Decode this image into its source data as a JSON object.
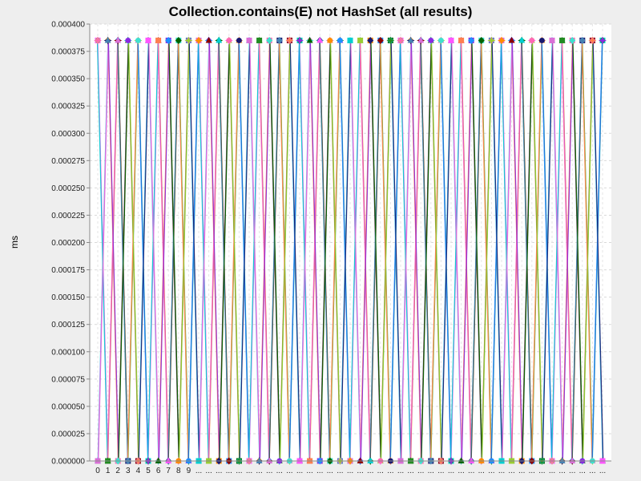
{
  "chart_data": {
    "type": "line",
    "title": "Collection.contains(E) not HashSet (all results)",
    "xlabel": "",
    "ylabel": "ms",
    "ylim": [
      0,
      0.0004
    ],
    "ytick_labels": [
      "0.000000",
      "0.000025",
      "0.000050",
      "0.000075",
      "0.000100",
      "0.000125",
      "0.000150",
      "0.000175",
      "0.000200",
      "0.000225",
      "0.000250",
      "0.000275",
      "0.000300",
      "0.000325",
      "0.000350",
      "0.000375",
      "0.000400"
    ],
    "categories": [
      "0",
      "1",
      "2",
      "3",
      "4",
      "5",
      "6",
      "7",
      "8",
      "9",
      "...",
      "...",
      "...",
      "...",
      "...",
      "...",
      "...",
      "...",
      "...",
      "...",
      "...",
      "...",
      "...",
      "...",
      "...",
      "...",
      "...",
      "...",
      "...",
      "...",
      "...",
      "...",
      "...",
      "...",
      "...",
      "...",
      "...",
      "...",
      "...",
      "...",
      "...",
      "...",
      "...",
      "...",
      "...",
      "...",
      "...",
      "...",
      "...",
      "...",
      "..."
    ],
    "series_colors": [
      "#ff55ff",
      "#006400",
      "#1e90ff",
      "#ff8c00",
      "#9acd32",
      "#00ced1",
      "#8b0000",
      "#191970",
      "#ff69b4",
      "#228b22",
      "#da70d6",
      "#4682b4",
      "#40e0d0",
      "#8a2be2",
      "#ff7f50"
    ],
    "grid": true,
    "legend": "none",
    "series": [
      {
        "values": [
          0.000385,
          0.0,
          0.000385,
          0.0,
          0.000385,
          0.0,
          0.000385,
          0.0,
          0.000385,
          0.0,
          0.000385,
          0.0,
          0.000385,
          0.0,
          0.000385,
          0.0,
          0.000385,
          0.0,
          0.000385,
          0.0,
          0.000385,
          0.0,
          0.000385,
          0.0,
          0.000385,
          0.0,
          0.000385,
          0.0,
          0.000385,
          0.0,
          0.000385,
          0.0,
          0.000385,
          0.0,
          0.000385,
          0.0,
          0.000385,
          0.0,
          0.000385,
          0.0,
          0.000385,
          0.0,
          0.000385,
          0.0,
          0.000385,
          0.0,
          0.000385,
          0.0,
          0.000385,
          0.0,
          0.000385
        ]
      },
      {
        "values": [
          0.0,
          0.000385,
          0.0,
          0.000385,
          0.0,
          0.000385,
          0.0,
          0.000385,
          0.0,
          0.000385,
          0.0,
          0.000385,
          0.0,
          0.000385,
          0.0,
          0.000385,
          0.0,
          0.000385,
          0.0,
          0.000385,
          0.0,
          0.000385,
          0.0,
          0.000385,
          0.0,
          0.000385,
          0.0,
          0.000385,
          0.0,
          0.000385,
          0.0,
          0.000385,
          0.0,
          0.000385,
          0.0,
          0.000385,
          0.0,
          0.000385,
          0.0,
          0.000385,
          0.0,
          0.000385,
          0.0,
          0.000385,
          0.0,
          0.000385,
          0.0,
          0.000385,
          0.0,
          0.000385,
          0.0
        ]
      },
      {
        "values": [
          0.000385,
          0.0,
          0.000385,
          0.0,
          0.000385,
          0.0,
          0.000385,
          0.0,
          0.000385,
          0.0,
          0.000385,
          0.0,
          0.000385,
          0.0,
          0.000385,
          0.0,
          0.000385,
          0.0,
          0.000385,
          0.0,
          0.000385,
          0.0,
          0.000385,
          0.0,
          0.000385,
          0.0,
          0.000385,
          0.0,
          0.000385,
          0.0,
          0.000385,
          0.0,
          0.000385,
          0.0,
          0.000385,
          0.0,
          0.000385,
          0.0,
          0.000385,
          0.0,
          0.000385,
          0.0,
          0.000385,
          0.0,
          0.000385,
          0.0,
          0.000385,
          0.0,
          0.000385,
          0.0,
          0.000385
        ]
      },
      {
        "values": [
          0.0,
          0.000385,
          0.0,
          0.000385,
          0.0,
          0.000385,
          0.0,
          0.000385,
          0.0,
          0.000385,
          0.0,
          0.000385,
          0.0,
          0.000385,
          0.0,
          0.000385,
          0.0,
          0.000385,
          0.0,
          0.000385,
          0.0,
          0.000385,
          0.0,
          0.000385,
          0.0,
          0.000385,
          0.0,
          0.000385,
          0.0,
          0.000385,
          0.0,
          0.000385,
          0.0,
          0.000385,
          0.0,
          0.000385,
          0.0,
          0.000385,
          0.0,
          0.000385,
          0.0,
          0.000385,
          0.0,
          0.000385,
          0.0,
          0.000385,
          0.0,
          0.000385,
          0.0,
          0.000385,
          0.0
        ]
      },
      {
        "values": [
          0.000385,
          0.0,
          0.000385,
          0.0,
          0.000385,
          0.0,
          0.000385,
          0.0,
          0.000385,
          0.0,
          0.000385,
          0.0,
          0.000385,
          0.0,
          0.000385,
          0.0,
          0.000385,
          0.0,
          0.000385,
          0.0,
          0.000385,
          0.0,
          0.000385,
          0.0,
          0.000385,
          0.0,
          0.000385,
          0.0,
          0.000385,
          0.0,
          0.000385,
          0.0,
          0.000385,
          0.0,
          0.000385,
          0.0,
          0.000385,
          0.0,
          0.000385,
          0.0,
          0.000385,
          0.0,
          0.000385,
          0.0,
          0.000385,
          0.0,
          0.000385,
          0.0,
          0.000385,
          0.0,
          0.000385
        ]
      },
      {
        "values": [
          0.0,
          0.000385,
          0.0,
          0.000385,
          0.0,
          0.000385,
          0.0,
          0.000385,
          0.0,
          0.000385,
          0.0,
          0.000385,
          0.0,
          0.000385,
          0.0,
          0.000385,
          0.0,
          0.000385,
          0.0,
          0.000385,
          0.0,
          0.000385,
          0.0,
          0.000385,
          0.0,
          0.000385,
          0.0,
          0.000385,
          0.0,
          0.000385,
          0.0,
          0.000385,
          0.0,
          0.000385,
          0.0,
          0.000385,
          0.0,
          0.000385,
          0.0,
          0.000385,
          0.0,
          0.000385,
          0.0,
          0.000385,
          0.0,
          0.000385,
          0.0,
          0.000385,
          0.0,
          0.000385,
          0.0
        ]
      }
    ]
  }
}
